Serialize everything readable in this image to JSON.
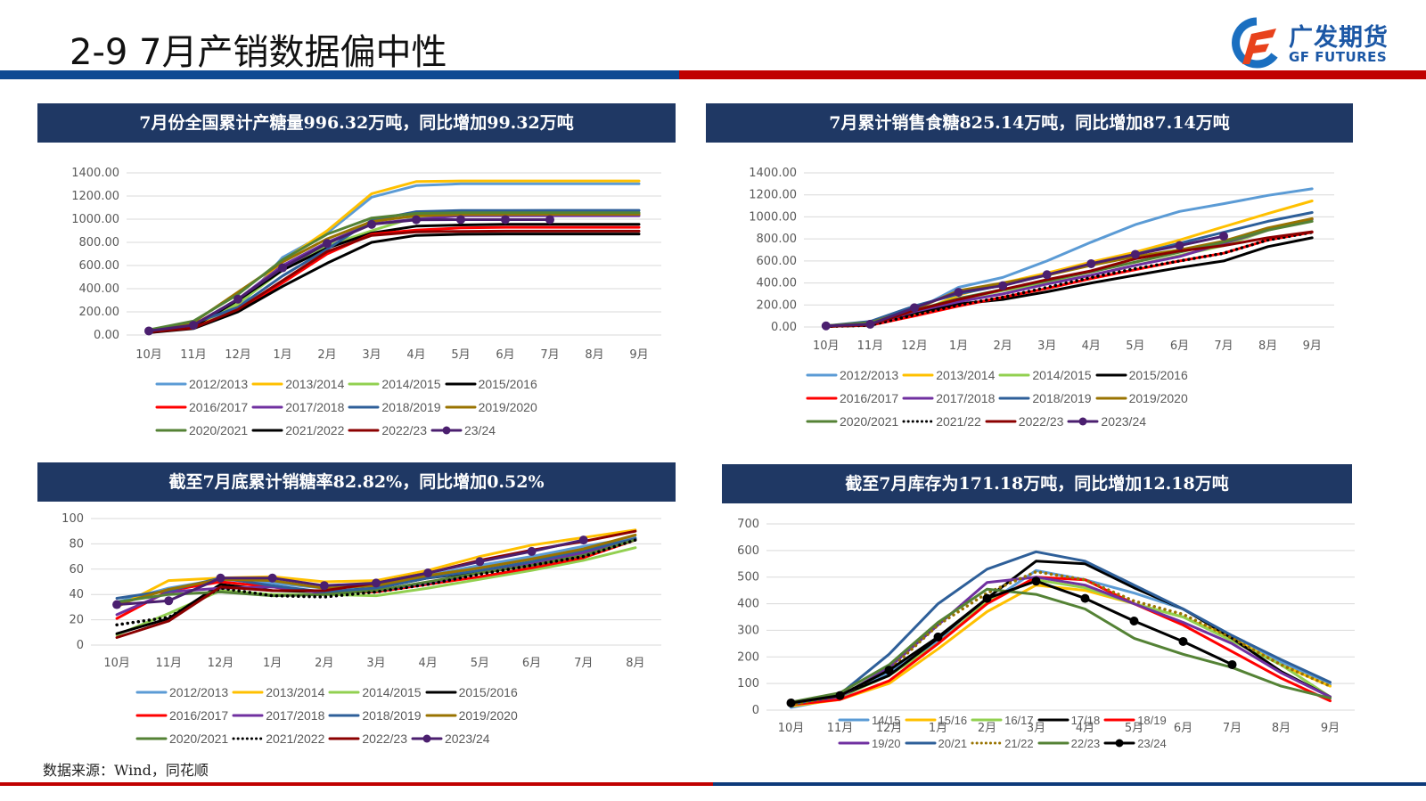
{
  "header": {
    "title": "2-9 7月产销数据偏中性",
    "logo_cn": "广发期货",
    "logo_en": "GF FUTURES",
    "brand_blue": "#0d4a93",
    "brand_red": "#c00000"
  },
  "footer": {
    "source": "数据来源：Wind，同花顺"
  },
  "chart_data": [
    {
      "id": "production",
      "type": "line",
      "title": "7月份全国累计产糖量996.32万吨，同比增加99.32万吨",
      "categories": [
        "10月",
        "11月",
        "12月",
        "1月",
        "2月",
        "3月",
        "4月",
        "5月",
        "6月",
        "7月",
        "8月",
        "9月"
      ],
      "ylim": [
        0,
        1400
      ],
      "yticks": [
        "0.00",
        "200.00",
        "400.00",
        "600.00",
        "800.00",
        "1000.00",
        "1200.00",
        "1400.00"
      ],
      "ytick_values": [
        0,
        200,
        400,
        600,
        800,
        1000,
        1200,
        1400
      ],
      "grid": true,
      "legend_position": "bottom",
      "series": [
        {
          "name": "2012/2013",
          "color": "#5b9bd5",
          "style": "solid",
          "values": [
            30,
            90,
            230,
            670,
            880,
            1190,
            1290,
            1305,
            1305,
            1305,
            1305,
            1305
          ]
        },
        {
          "name": "2013/2014",
          "color": "#ffc000",
          "style": "solid",
          "values": [
            25,
            80,
            260,
            640,
            900,
            1220,
            1325,
            1330,
            1330,
            1330,
            1330,
            1330
          ]
        },
        {
          "name": "2014/2015",
          "color": "#92d050",
          "style": "solid",
          "values": [
            25,
            85,
            270,
            560,
            770,
            900,
            1020,
            1040,
            1050,
            1050,
            1050,
            1050
          ]
        },
        {
          "name": "2015/2016",
          "color": "#000000",
          "style": "solid",
          "values": [
            30,
            70,
            300,
            560,
            750,
            880,
            940,
            950,
            955,
            955,
            955,
            955
          ]
        },
        {
          "name": "2016/2017",
          "color": "#ff0000",
          "style": "solid",
          "values": [
            20,
            65,
            210,
            450,
            700,
            870,
            905,
            925,
            930,
            930,
            930,
            930
          ]
        },
        {
          "name": "2017/2018",
          "color": "#7030a0",
          "style": "solid",
          "values": [
            30,
            85,
            310,
            600,
            800,
            960,
            1000,
            1030,
            1030,
            1030,
            1030,
            1030
          ]
        },
        {
          "name": "2018/2019",
          "color": "#2e5f99",
          "style": "solid",
          "values": [
            35,
            100,
            240,
            510,
            740,
            990,
            1065,
            1075,
            1075,
            1076,
            1076,
            1076
          ]
        },
        {
          "name": "2019/2020",
          "color": "#997300",
          "style": "solid",
          "values": [
            40,
            110,
            370,
            630,
            830,
            980,
            1030,
            1040,
            1040,
            1042,
            1042,
            1042
          ]
        },
        {
          "name": "2020/2021",
          "color": "#548235",
          "style": "solid",
          "values": [
            45,
            120,
            350,
            650,
            870,
            1010,
            1050,
            1055,
            1055,
            1055,
            1055,
            1055
          ]
        },
        {
          "name": "2021/2022",
          "color": "#000000",
          "style": "solid",
          "values": [
            20,
            55,
            200,
            420,
            620,
            800,
            860,
            870,
            872,
            872,
            872,
            872
          ]
        },
        {
          "name": "2022/23",
          "color": "#8b0000",
          "style": "solid",
          "values": [
            25,
            60,
            220,
            470,
            720,
            860,
            890,
            895,
            897,
            897,
            897,
            897
          ]
        },
        {
          "name": "23/24",
          "color": "#4b1f6f",
          "style": "marker",
          "values": [
            35,
            85,
            310,
            580,
            790,
            955,
            995,
            996,
            996,
            996,
            null,
            null
          ]
        }
      ]
    },
    {
      "id": "sales",
      "type": "line",
      "title": "7月累计销售食糖825.14万吨，同比增加87.14万吨",
      "categories": [
        "10月",
        "11月",
        "12月",
        "1月",
        "2月",
        "3月",
        "4月",
        "5月",
        "6月",
        "7月",
        "8月",
        "9月"
      ],
      "ylim": [
        0,
        1400
      ],
      "yticks": [
        "0.00",
        "200.00",
        "400.00",
        "600.00",
        "800.00",
        "1000.00",
        "1200.00",
        "1400.00"
      ],
      "ytick_values": [
        0,
        200,
        400,
        600,
        800,
        1000,
        1200,
        1400
      ],
      "grid": true,
      "legend_position": "bottom",
      "series": [
        {
          "name": "2012/2013",
          "color": "#5b9bd5",
          "style": "solid",
          "values": [
            10,
            40,
            150,
            360,
            450,
            600,
            770,
            930,
            1050,
            1120,
            1195,
            1255
          ]
        },
        {
          "name": "2013/2014",
          "color": "#ffc000",
          "style": "solid",
          "values": [
            5,
            20,
            120,
            290,
            400,
            490,
            590,
            680,
            790,
            910,
            1030,
            1145
          ]
        },
        {
          "name": "2014/2015",
          "color": "#92d050",
          "style": "solid",
          "values": [
            5,
            15,
            110,
            250,
            330,
            400,
            470,
            560,
            650,
            740,
            880,
            980
          ]
        },
        {
          "name": "2015/2016",
          "color": "#000000",
          "style": "solid",
          "values": [
            5,
            15,
            130,
            210,
            250,
            320,
            400,
            470,
            540,
            600,
            730,
            810
          ]
        },
        {
          "name": "2016/2017",
          "color": "#ff0000",
          "style": "solid",
          "values": [
            5,
            15,
            100,
            190,
            270,
            350,
            440,
            520,
            600,
            670,
            790,
            860
          ]
        },
        {
          "name": "2017/2018",
          "color": "#7030a0",
          "style": "solid",
          "values": [
            5,
            20,
            140,
            230,
            300,
            390,
            470,
            560,
            640,
            760,
            880,
            980
          ]
        },
        {
          "name": "2018/2019",
          "color": "#2e5f99",
          "style": "solid",
          "values": [
            10,
            50,
            190,
            300,
            380,
            470,
            570,
            660,
            760,
            860,
            960,
            1040
          ]
        },
        {
          "name": "2019/2020",
          "color": "#997300",
          "style": "solid",
          "values": [
            10,
            40,
            160,
            330,
            400,
            470,
            560,
            640,
            700,
            780,
            900,
            985
          ]
        },
        {
          "name": "2020/2021",
          "color": "#548235",
          "style": "solid",
          "values": [
            10,
            40,
            150,
            260,
            340,
            420,
            500,
            590,
            680,
            770,
            880,
            960
          ]
        },
        {
          "name": "2021/22",
          "color": "#000000",
          "style": "dotted",
          "values": [
            5,
            15,
            110,
            200,
            270,
            360,
            450,
            530,
            600,
            670,
            790,
            860
          ]
        },
        {
          "name": "2022/23",
          "color": "#8b0000",
          "style": "solid",
          "values": [
            5,
            20,
            150,
            250,
            340,
            430,
            510,
            620,
            690,
            740,
            810,
            865
          ]
        },
        {
          "name": "2023/24",
          "color": "#4b1f6f",
          "style": "marker",
          "values": [
            10,
            25,
            175,
            315,
            375,
            475,
            575,
            660,
            740,
            825,
            null,
            null
          ]
        }
      ]
    },
    {
      "id": "sales_rate",
      "type": "line",
      "title": "截至7月底累计销糖率82.82%，同比增加0.52%",
      "categories": [
        "10月",
        "11月",
        "12月",
        "1月",
        "2月",
        "3月",
        "4月",
        "5月",
        "6月",
        "7月",
        "8月"
      ],
      "ylim": [
        0,
        100
      ],
      "yticks": [
        "0",
        "20",
        "40",
        "60",
        "80",
        "100"
      ],
      "ytick_values": [
        0,
        20,
        40,
        60,
        80,
        100
      ],
      "grid": true,
      "legend_position": "bottom",
      "series": [
        {
          "name": "2012/2013",
          "color": "#5b9bd5",
          "style": "solid",
          "values": [
            34,
            45,
            52,
            49,
            45,
            46,
            55,
            63,
            70,
            78,
            85
          ]
        },
        {
          "name": "2013/2014",
          "color": "#ffc000",
          "style": "solid",
          "values": [
            30,
            51,
            53,
            54,
            50,
            51,
            59,
            70,
            79,
            85,
            91
          ]
        },
        {
          "name": "2014/2015",
          "color": "#92d050",
          "style": "solid",
          "values": [
            8,
            25,
            43,
            40,
            40,
            39,
            45,
            52,
            59,
            67,
            77
          ]
        },
        {
          "name": "2015/2016",
          "color": "#000000",
          "style": "solid",
          "values": [
            9,
            21,
            48,
            43,
            42,
            45,
            53,
            58,
            64,
            72,
            84
          ]
        },
        {
          "name": "2016/2017",
          "color": "#ff0000",
          "style": "solid",
          "values": [
            21,
            43,
            50,
            46,
            42,
            42,
            48,
            54,
            61,
            69,
            83
          ]
        },
        {
          "name": "2017/2018",
          "color": "#7030a0",
          "style": "solid",
          "values": [
            24,
            42,
            45,
            46,
            41,
            43,
            49,
            57,
            64,
            73,
            84
          ]
        },
        {
          "name": "2018/2019",
          "color": "#2e5f99",
          "style": "solid",
          "values": [
            37,
            43,
            53,
            47,
            42,
            45,
            53,
            59,
            66,
            75,
            84
          ]
        },
        {
          "name": "2019/2020",
          "color": "#997300",
          "style": "solid",
          "values": [
            32,
            44,
            52,
            51,
            45,
            47,
            55,
            61,
            68,
            76,
            87
          ]
        },
        {
          "name": "2020/2021",
          "color": "#548235",
          "style": "solid",
          "values": [
            34,
            40,
            42,
            39,
            40,
            43,
            50,
            57,
            63,
            71,
            83
          ]
        },
        {
          "name": "2021/2022",
          "color": "#000000",
          "style": "dotted",
          "values": [
            16,
            22,
            45,
            39,
            38,
            42,
            48,
            56,
            63,
            70,
            83
          ]
        },
        {
          "name": "2022/23",
          "color": "#8b0000",
          "style": "solid",
          "values": [
            6,
            19,
            46,
            43,
            43,
            49,
            57,
            67,
            75,
            82,
            90
          ]
        },
        {
          "name": "2023/24",
          "color": "#4b1f6f",
          "style": "marker",
          "values": [
            32,
            35,
            53,
            53,
            47,
            49,
            57,
            66,
            74,
            83,
            null
          ]
        }
      ]
    },
    {
      "id": "inventory",
      "type": "line",
      "title": "截至7月库存为171.18万吨，同比增加12.18万吨",
      "categories": [
        "10月",
        "11月",
        "12月",
        "1月",
        "2月",
        "3月",
        "4月",
        "5月",
        "6月",
        "7月",
        "8月",
        "9月"
      ],
      "ylim": [
        0,
        700
      ],
      "yticks": [
        "0",
        "100",
        "200",
        "300",
        "400",
        "500",
        "600",
        "700"
      ],
      "ytick_values": [
        0,
        100,
        200,
        300,
        400,
        500,
        600,
        700
      ],
      "grid": true,
      "legend_position": "bottom",
      "series": [
        {
          "name": "14/15",
          "color": "#5b9bd5",
          "style": "solid",
          "values": [
            10,
            45,
            140,
            260,
            400,
            525,
            490,
            440,
            380,
            280,
            180,
            95
          ]
        },
        {
          "name": "15/16",
          "color": "#ffc000",
          "style": "solid",
          "values": [
            15,
            40,
            100,
            230,
            370,
            470,
            450,
            400,
            350,
            270,
            170,
            90
          ]
        },
        {
          "name": "16/17",
          "color": "#92d050",
          "style": "solid",
          "values": [
            20,
            50,
            130,
            250,
            410,
            490,
            460,
            400,
            350,
            260,
            170,
            50
          ]
        },
        {
          "name": "17/18",
          "color": "#000000",
          "style": "solid",
          "values": [
            25,
            55,
            130,
            270,
            420,
            560,
            550,
            460,
            380,
            270,
            145,
            50
          ]
        },
        {
          "name": "18/19",
          "color": "#ff0000",
          "style": "solid",
          "values": [
            20,
            40,
            110,
            250,
            400,
            500,
            490,
            400,
            320,
            220,
            120,
            35
          ]
        },
        {
          "name": "19/20",
          "color": "#7030a0",
          "style": "solid",
          "values": [
            25,
            50,
            160,
            320,
            480,
            500,
            470,
            400,
            330,
            250,
            140,
            50
          ]
        },
        {
          "name": "20/21",
          "color": "#2e5f99",
          "style": "solid",
          "values": [
            20,
            60,
            210,
            400,
            530,
            595,
            560,
            470,
            380,
            280,
            190,
            105
          ]
        },
        {
          "name": "21/22",
          "color": "#997300",
          "style": "dotted",
          "values": [
            20,
            55,
            150,
            320,
            440,
            520,
            490,
            410,
            360,
            270,
            170,
            90
          ]
        },
        {
          "name": "22/23",
          "color": "#548235",
          "style": "solid",
          "values": [
            30,
            65,
            170,
            330,
            455,
            435,
            380,
            270,
            210,
            160,
            90,
            45
          ]
        },
        {
          "name": "23/24",
          "color": "#000000",
          "style": "marker",
          "values": [
            27,
            55,
            150,
            275,
            420,
            485,
            420,
            335,
            258,
            171,
            null,
            null
          ]
        }
      ]
    }
  ]
}
